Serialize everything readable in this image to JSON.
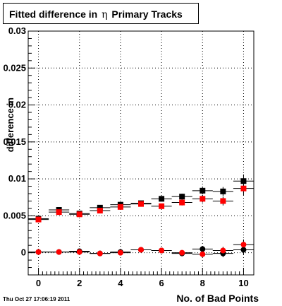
{
  "chart_data": {
    "type": "scatter",
    "title": {
      "before": "Fitted difference in",
      "symbol": "η",
      "after": "Primary Tracks"
    },
    "xlabel": "No. of Bad Points",
    "ylabel": "difference in",
    "xlim": [
      -0.5,
      10.5
    ],
    "ylim": [
      -0.003,
      0.03
    ],
    "x_ticks": [
      0,
      2,
      4,
      6,
      8,
      10
    ],
    "y_ticks": [
      0,
      0.005,
      0.01,
      0.015,
      0.02,
      0.025,
      0.03
    ],
    "y_tick_labels": [
      "0",
      "0.005",
      "0.01",
      "0.015",
      "0.02",
      "0.025",
      "0.03"
    ],
    "grid": true,
    "series": [
      {
        "marker": "square",
        "color": "#000000",
        "x": [
          0,
          1,
          2,
          3,
          4,
          5,
          6,
          7,
          8,
          9,
          10
        ],
        "y": [
          0.0046,
          0.0058,
          0.0053,
          0.0061,
          0.0065,
          0.0067,
          0.0073,
          0.0076,
          0.0084,
          0.0083,
          0.0097
        ],
        "yerr": [
          0.0002,
          0.0002,
          0.0002,
          0.0002,
          0.0003,
          0.0003,
          0.0003,
          0.0004,
          0.0005,
          0.0006,
          0.0009
        ]
      },
      {
        "marker": "square",
        "color": "#ff0000",
        "x": [
          0,
          1,
          2,
          3,
          4,
          5,
          6,
          7,
          8,
          9,
          10
        ],
        "y": [
          0.0045,
          0.0055,
          0.0052,
          0.0057,
          0.0062,
          0.0066,
          0.0063,
          0.0068,
          0.0073,
          0.007,
          0.0087
        ],
        "yerr": [
          0.0002,
          0.0002,
          0.0002,
          0.0002,
          0.0003,
          0.0003,
          0.0003,
          0.0004,
          0.0005,
          0.0006,
          0.0009
        ]
      },
      {
        "marker": "circle",
        "color": "#000000",
        "x": [
          0,
          1,
          2,
          3,
          4,
          5,
          6,
          7,
          8,
          9,
          10
        ],
        "y": [
          0.0001,
          0.0001,
          0.0002,
          -0.0001,
          0.0001,
          0.0004,
          0.0003,
          -0.0001,
          0.0005,
          -0.0001,
          0.0004
        ],
        "yerr": [
          0.0001,
          0.0001,
          0.0002,
          0.0002,
          0.0002,
          0.0002,
          0.0003,
          0.0003,
          0.0004,
          0.0005,
          0.0007
        ]
      },
      {
        "marker": "circle",
        "color": "#ff0000",
        "x": [
          0,
          1,
          2,
          3,
          4,
          5,
          6,
          7,
          8,
          9,
          10
        ],
        "y": [
          0.0001,
          0.0001,
          0.0001,
          -0.0001,
          0.0,
          0.0004,
          0.0003,
          0.0,
          -0.0002,
          0.0003,
          0.0011
        ],
        "yerr": [
          0.0001,
          0.0001,
          0.0002,
          0.0002,
          0.0002,
          0.0002,
          0.0003,
          0.0003,
          0.0004,
          0.0005,
          0.0007
        ]
      }
    ]
  },
  "timestamp": "Thu Oct 27 17:06:19 2011"
}
